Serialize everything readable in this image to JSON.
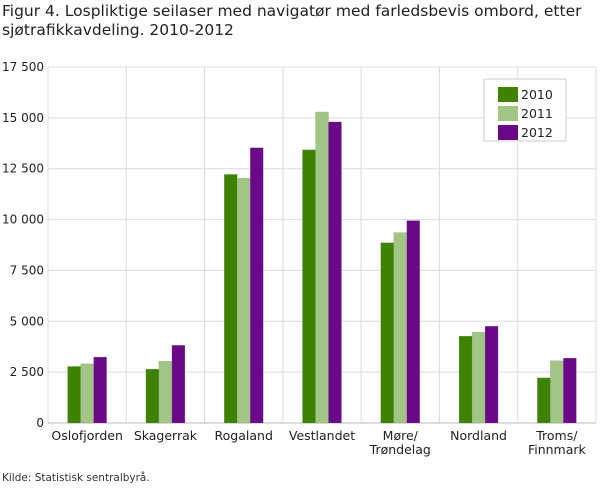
{
  "title": "Figur 4.  Lospliktige seilaser med navigatør med farledsbevis ombord, etter sjøtrafikkavdeling. 2010-2012",
  "source": "Kilde: Statistisk sentralbyrå.",
  "chart_data": {
    "type": "bar",
    "title": "Figur 4.  Lospliktige seilaser med navigatør med farledsbevis ombord, etter sjøtrafikkavdeling. 2010-2012",
    "categories": [
      "Oslofjorden",
      "Skagerrak",
      "Rogaland",
      "Vestlandet",
      "Møre/\nTrøndelag",
      "Nordland",
      "Troms/\nFinnmark"
    ],
    "series": [
      {
        "name": "2010",
        "color": "#3d8200",
        "values": [
          2780,
          2650,
          12220,
          13430,
          8860,
          4270,
          2220
        ]
      },
      {
        "name": "2011",
        "color": "#a0c584",
        "values": [
          2910,
          3040,
          12030,
          15290,
          9360,
          4460,
          3060
        ]
      },
      {
        "name": "2012",
        "color": "#6a0888",
        "values": [
          3240,
          3820,
          13530,
          14800,
          9950,
          4760,
          3190
        ]
      }
    ],
    "yticks": [
      "0",
      "2 500",
      "5 000",
      "7 500",
      "10 000",
      "12 500",
      "15 000",
      "17 500"
    ],
    "ylim": [
      0,
      17500
    ],
    "grid": true,
    "legend": "top-right",
    "xlabel": "",
    "ylabel": ""
  }
}
